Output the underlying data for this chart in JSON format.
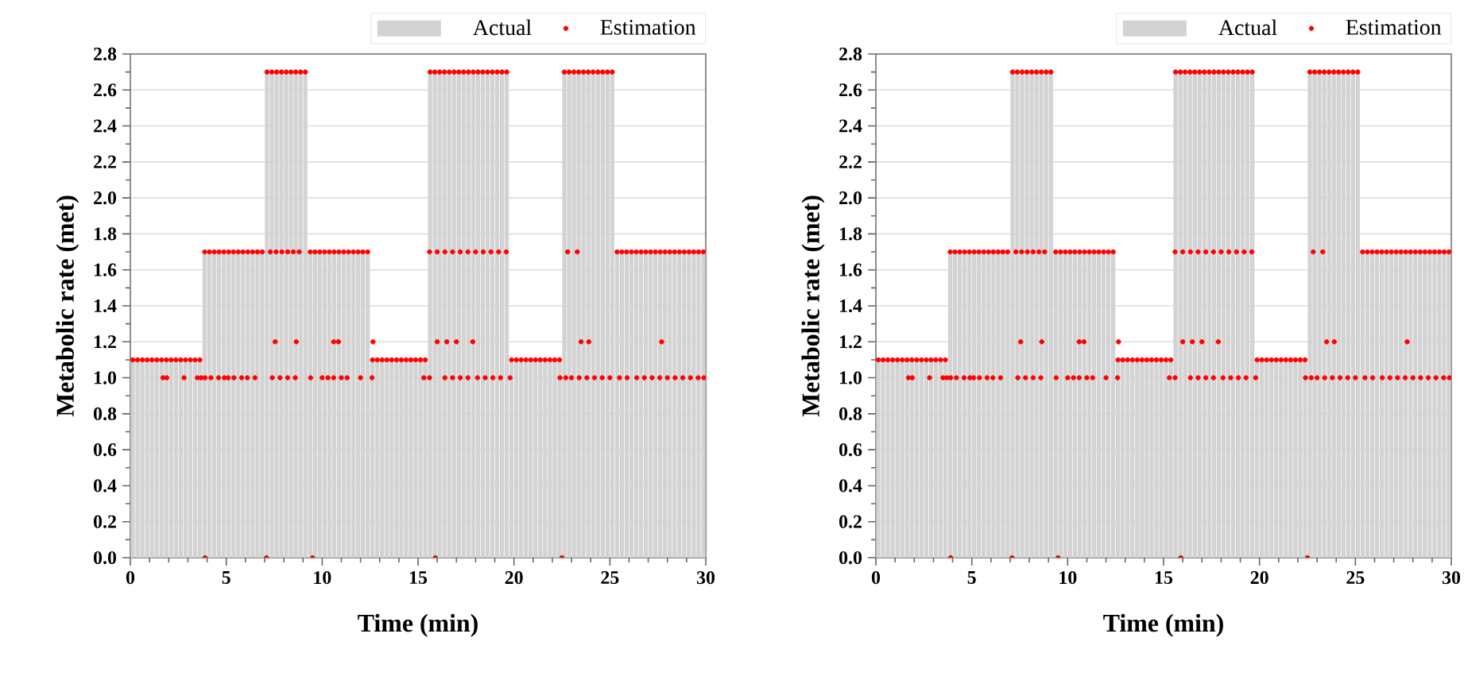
{
  "chart_data": [
    {
      "type": "bar",
      "xlabel": "Time (min)",
      "ylabel": "Metabolic rate (met)",
      "xlim": [
        0,
        30
      ],
      "ylim": [
        0,
        2.8
      ],
      "xticks": [
        0,
        5,
        10,
        15,
        20,
        25,
        30
      ],
      "yticks": [
        {
          "value": 0,
          "label": "0.0"
        },
        {
          "value": 0.2,
          "label": "0.2"
        },
        {
          "value": 0.4,
          "label": "0.4"
        },
        {
          "value": 0.6,
          "label": "0.6"
        },
        {
          "value": 0.8,
          "label": "0.8"
        },
        {
          "value": 1.0,
          "label": "1.0"
        },
        {
          "value": 1.2,
          "label": "1.2"
        },
        {
          "value": 1.4,
          "label": "1.4"
        },
        {
          "value": 1.6,
          "label": "1.6"
        },
        {
          "value": 1.8,
          "label": "1.8"
        },
        {
          "value": 2.0,
          "label": "2.0"
        },
        {
          "value": 2.2,
          "label": "2.2"
        },
        {
          "value": 2.4,
          "label": "2.4"
        },
        {
          "value": 2.6,
          "label": "2.6"
        },
        {
          "value": 2.8,
          "label": "2.8"
        }
      ],
      "grid": "y",
      "legend": "top right",
      "series": [
        {
          "name": "Actual",
          "color": "#d3d3d3",
          "x": [
            0.125,
            0.375,
            0.625,
            0.875,
            1.125,
            1.375,
            1.625,
            1.875,
            2.125,
            2.375,
            2.625,
            2.875,
            3.125,
            3.375,
            3.625,
            3.875,
            4.125,
            4.375,
            4.625,
            4.875,
            5.125,
            5.375,
            5.625,
            5.875,
            6.125,
            6.375,
            6.625,
            6.875,
            7.125,
            7.375,
            7.625,
            7.875,
            8.125,
            8.375,
            8.625,
            8.875,
            9.125,
            9.375,
            9.625,
            9.875,
            10.125,
            10.375,
            10.625,
            10.875,
            11.125,
            11.375,
            11.625,
            11.875,
            12.125,
            12.375,
            12.625,
            12.875,
            13.125,
            13.375,
            13.625,
            13.875,
            14.125,
            14.375,
            14.625,
            14.875,
            15.125,
            15.375,
            15.625,
            15.875,
            16.125,
            16.375,
            16.625,
            16.875,
            17.125,
            17.375,
            17.625,
            17.875,
            18.125,
            18.375,
            18.625,
            18.875,
            19.125,
            19.375,
            19.625,
            19.875,
            20.125,
            20.375,
            20.625,
            20.875,
            21.125,
            21.375,
            21.625,
            21.875,
            22.125,
            22.375,
            22.625,
            22.875,
            23.125,
            23.375,
            23.625,
            23.875,
            24.125,
            24.375,
            24.625,
            24.875,
            25.125,
            25.375,
            25.625,
            25.875,
            26.125,
            26.375,
            26.625,
            26.875,
            27.125,
            27.375,
            27.625,
            27.875,
            28.125,
            28.375,
            28.625,
            28.875,
            29.125,
            29.375,
            29.625,
            29.875
          ],
          "values": [
            1.1,
            1.1,
            1.1,
            1.1,
            1.1,
            1.1,
            1.1,
            1.1,
            1.1,
            1.1,
            1.1,
            1.1,
            1.1,
            1.1,
            1.1,
            1.7,
            1.7,
            1.7,
            1.7,
            1.7,
            1.7,
            1.7,
            1.7,
            1.7,
            1.7,
            1.7,
            1.7,
            1.7,
            2.7,
            2.7,
            2.7,
            2.7,
            2.7,
            2.7,
            2.7,
            2.7,
            2.7,
            1.7,
            1.7,
            1.7,
            1.7,
            1.7,
            1.7,
            1.7,
            1.7,
            1.7,
            1.7,
            1.7,
            1.7,
            1.7,
            1.1,
            1.1,
            1.1,
            1.1,
            1.1,
            1.1,
            1.1,
            1.1,
            1.1,
            1.1,
            1.1,
            1.1,
            2.7,
            2.7,
            2.7,
            2.7,
            2.7,
            2.7,
            2.7,
            2.7,
            2.7,
            2.7,
            2.7,
            2.7,
            2.7,
            2.7,
            2.7,
            2.7,
            2.7,
            1.1,
            1.1,
            1.1,
            1.1,
            1.1,
            1.1,
            1.1,
            1.1,
            1.1,
            1.1,
            1.1,
            2.7,
            2.7,
            2.7,
            2.7,
            2.7,
            2.7,
            2.7,
            2.7,
            2.7,
            2.7,
            2.7,
            1.7,
            1.7,
            1.7,
            1.7,
            1.7,
            1.7,
            1.7,
            1.7,
            1.7,
            1.7,
            1.7,
            1.7,
            1.7,
            1.7,
            1.7,
            1.7,
            1.7,
            1.7,
            1.7
          ]
        },
        {
          "name": "Estimation",
          "type": "scatter",
          "color": "#ff0000",
          "marker": "circle",
          "x": [
            0.125,
            0.375,
            0.625,
            0.875,
            1.125,
            1.375,
            1.625,
            1.875,
            2.125,
            2.375,
            2.625,
            2.875,
            3.125,
            3.375,
            3.625,
            3.875,
            4.125,
            4.375,
            4.625,
            4.875,
            5.125,
            5.375,
            5.625,
            5.875,
            6.125,
            6.375,
            6.625,
            6.875,
            7.125,
            7.375,
            7.625,
            7.875,
            8.125,
            8.375,
            8.625,
            8.875,
            9.125,
            9.375,
            9.625,
            9.875,
            10.125,
            10.375,
            10.625,
            10.875,
            11.125,
            11.375,
            11.625,
            11.875,
            12.125,
            12.375,
            12.625,
            12.875,
            13.125,
            13.375,
            13.625,
            13.875,
            14.125,
            14.375,
            14.625,
            14.875,
            15.125,
            15.375,
            15.625,
            15.875,
            16.125,
            16.375,
            16.625,
            16.875,
            17.125,
            17.375,
            17.625,
            17.875,
            18.125,
            18.375,
            18.625,
            18.875,
            19.125,
            19.375,
            19.625,
            19.875,
            20.125,
            20.375,
            20.625,
            20.875,
            21.125,
            21.375,
            21.625,
            21.875,
            22.125,
            22.375,
            22.625,
            22.875,
            23.125,
            23.375,
            23.625,
            23.875,
            24.125,
            24.375,
            24.625,
            24.875,
            25.125,
            25.375,
            25.625,
            25.875,
            26.125,
            26.375,
            26.625,
            26.875,
            27.125,
            27.375,
            27.625,
            27.875,
            28.125,
            28.375,
            28.625,
            28.875,
            29.125,
            29.375,
            29.625,
            29.875,
            1.7,
            1.9,
            2.8,
            3.5,
            3.7,
            3.9,
            4.2,
            4.6,
            4.9,
            5.1,
            5.4,
            5.8,
            6.1,
            6.5,
            7.4,
            7.8,
            8.2,
            8.6,
            9.4,
            10.0,
            10.3,
            10.6,
            11.0,
            11.3,
            12.0,
            12.6,
            15.3,
            15.6,
            16.4,
            16.8,
            17.2,
            17.6,
            18.1,
            18.5,
            18.9,
            19.3,
            19.8,
            22.4,
            22.7,
            23.0,
            23.4,
            23.8,
            24.2,
            24.6,
            25.0,
            25.5,
            25.9,
            26.4,
            26.8,
            27.2,
            27.6,
            28.0,
            28.4,
            28.8,
            29.2,
            29.6,
            29.9,
            7.55,
            8.65,
            10.6,
            10.85,
            12.65,
            16.0,
            16.5,
            17.0,
            17.85,
            23.5,
            23.9,
            27.7,
            7.3,
            7.6,
            7.9,
            8.2,
            8.5,
            8.8,
            15.6,
            16.0,
            16.4,
            16.8,
            17.2,
            17.6,
            18.0,
            18.4,
            18.8,
            19.2,
            19.6,
            22.8,
            23.3,
            3.9,
            7.1,
            9.5,
            15.9,
            22.5
          ],
          "values": [
            1.1,
            1.1,
            1.1,
            1.1,
            1.1,
            1.1,
            1.1,
            1.1,
            1.1,
            1.1,
            1.1,
            1.1,
            1.1,
            1.1,
            1.1,
            1.7,
            1.7,
            1.7,
            1.7,
            1.7,
            1.7,
            1.7,
            1.7,
            1.7,
            1.7,
            1.7,
            1.7,
            1.7,
            2.7,
            2.7,
            2.7,
            2.7,
            2.7,
            2.7,
            2.7,
            2.7,
            2.7,
            1.7,
            1.7,
            1.7,
            1.7,
            1.7,
            1.7,
            1.7,
            1.7,
            1.7,
            1.7,
            1.7,
            1.7,
            1.7,
            1.1,
            1.1,
            1.1,
            1.1,
            1.1,
            1.1,
            1.1,
            1.1,
            1.1,
            1.1,
            1.1,
            1.1,
            2.7,
            2.7,
            2.7,
            2.7,
            2.7,
            2.7,
            2.7,
            2.7,
            2.7,
            2.7,
            2.7,
            2.7,
            2.7,
            2.7,
            2.7,
            2.7,
            2.7,
            1.1,
            1.1,
            1.1,
            1.1,
            1.1,
            1.1,
            1.1,
            1.1,
            1.1,
            1.1,
            1.1,
            2.7,
            2.7,
            2.7,
            2.7,
            2.7,
            2.7,
            2.7,
            2.7,
            2.7,
            2.7,
            2.7,
            1.7,
            1.7,
            1.7,
            1.7,
            1.7,
            1.7,
            1.7,
            1.7,
            1.7,
            1.7,
            1.7,
            1.7,
            1.7,
            1.7,
            1.7,
            1.7,
            1.7,
            1.7,
            1.7,
            1.0,
            1.0,
            1.0,
            1.0,
            1.0,
            1.0,
            1.0,
            1.0,
            1.0,
            1.0,
            1.0,
            1.0,
            1.0,
            1.0,
            1.0,
            1.0,
            1.0,
            1.0,
            1.0,
            1.0,
            1.0,
            1.0,
            1.0,
            1.0,
            1.0,
            1.0,
            1.0,
            1.0,
            1.0,
            1.0,
            1.0,
            1.0,
            1.0,
            1.0,
            1.0,
            1.0,
            1.0,
            1.0,
            1.0,
            1.0,
            1.0,
            1.0,
            1.0,
            1.0,
            1.0,
            1.0,
            1.0,
            1.0,
            1.0,
            1.0,
            1.0,
            1.0,
            1.0,
            1.0,
            1.0,
            1.0,
            1.0,
            1.2,
            1.2,
            1.2,
            1.2,
            1.2,
            1.2,
            1.2,
            1.2,
            1.2,
            1.2,
            1.2,
            1.2,
            1.7,
            1.7,
            1.7,
            1.7,
            1.7,
            1.7,
            1.7,
            1.7,
            1.7,
            1.7,
            1.7,
            1.7,
            1.7,
            1.7,
            1.7,
            1.7,
            1.7,
            1.7,
            1.7,
            0,
            0,
            0,
            0,
            0
          ]
        }
      ]
    },
    {
      "type": "bar",
      "xlabel": "Time (min)",
      "ylabel": "Metabolic rate (met)",
      "xlim": [
        0,
        30
      ],
      "ylim": [
        0,
        2.8
      ],
      "xticks": [
        0,
        5,
        10,
        15,
        20,
        25,
        30
      ],
      "yticks": [
        {
          "value": 0,
          "label": "0.0"
        },
        {
          "value": 0.2,
          "label": "0.2"
        },
        {
          "value": 0.4,
          "label": "0.4"
        },
        {
          "value": 0.6,
          "label": "0.6"
        },
        {
          "value": 0.8,
          "label": "0.8"
        },
        {
          "value": 1.0,
          "label": "1.0"
        },
        {
          "value": 1.2,
          "label": "1.2"
        },
        {
          "value": 1.4,
          "label": "1.4"
        },
        {
          "value": 1.6,
          "label": "1.6"
        },
        {
          "value": 1.8,
          "label": "1.8"
        },
        {
          "value": 2.0,
          "label": "2.0"
        },
        {
          "value": 2.2,
          "label": "2.2"
        },
        {
          "value": 2.4,
          "label": "2.4"
        },
        {
          "value": 2.6,
          "label": "2.6"
        },
        {
          "value": 2.8,
          "label": "2.8"
        }
      ],
      "grid": "y",
      "legend": "top right",
      "series": [
        {
          "name": "Actual",
          "color": "#d3d3d3",
          "x": [
            0.125,
            0.375,
            0.625,
            0.875,
            1.125,
            1.375,
            1.625,
            1.875,
            2.125,
            2.375,
            2.625,
            2.875,
            3.125,
            3.375,
            3.625,
            3.875,
            4.125,
            4.375,
            4.625,
            4.875,
            5.125,
            5.375,
            5.625,
            5.875,
            6.125,
            6.375,
            6.625,
            6.875,
            7.125,
            7.375,
            7.625,
            7.875,
            8.125,
            8.375,
            8.625,
            8.875,
            9.125,
            9.375,
            9.625,
            9.875,
            10.125,
            10.375,
            10.625,
            10.875,
            11.125,
            11.375,
            11.625,
            11.875,
            12.125,
            12.375,
            12.625,
            12.875,
            13.125,
            13.375,
            13.625,
            13.875,
            14.125,
            14.375,
            14.625,
            14.875,
            15.125,
            15.375,
            15.625,
            15.875,
            16.125,
            16.375,
            16.625,
            16.875,
            17.125,
            17.375,
            17.625,
            17.875,
            18.125,
            18.375,
            18.625,
            18.875,
            19.125,
            19.375,
            19.625,
            19.875,
            20.125,
            20.375,
            20.625,
            20.875,
            21.125,
            21.375,
            21.625,
            21.875,
            22.125,
            22.375,
            22.625,
            22.875,
            23.125,
            23.375,
            23.625,
            23.875,
            24.125,
            24.375,
            24.625,
            24.875,
            25.125,
            25.375,
            25.625,
            25.875,
            26.125,
            26.375,
            26.625,
            26.875,
            27.125,
            27.375,
            27.625,
            27.875,
            28.125,
            28.375,
            28.625,
            28.875,
            29.125,
            29.375,
            29.625,
            29.875
          ],
          "values": [
            1.1,
            1.1,
            1.1,
            1.1,
            1.1,
            1.1,
            1.1,
            1.1,
            1.1,
            1.1,
            1.1,
            1.1,
            1.1,
            1.1,
            1.1,
            1.7,
            1.7,
            1.7,
            1.7,
            1.7,
            1.7,
            1.7,
            1.7,
            1.7,
            1.7,
            1.7,
            1.7,
            1.7,
            2.7,
            2.7,
            2.7,
            2.7,
            2.7,
            2.7,
            2.7,
            2.7,
            2.7,
            1.7,
            1.7,
            1.7,
            1.7,
            1.7,
            1.7,
            1.7,
            1.7,
            1.7,
            1.7,
            1.7,
            1.7,
            1.7,
            1.1,
            1.1,
            1.1,
            1.1,
            1.1,
            1.1,
            1.1,
            1.1,
            1.1,
            1.1,
            1.1,
            1.1,
            2.7,
            2.7,
            2.7,
            2.7,
            2.7,
            2.7,
            2.7,
            2.7,
            2.7,
            2.7,
            2.7,
            2.7,
            2.7,
            2.7,
            2.7,
            2.7,
            2.7,
            1.1,
            1.1,
            1.1,
            1.1,
            1.1,
            1.1,
            1.1,
            1.1,
            1.1,
            1.1,
            1.1,
            2.7,
            2.7,
            2.7,
            2.7,
            2.7,
            2.7,
            2.7,
            2.7,
            2.7,
            2.7,
            2.7,
            1.7,
            1.7,
            1.7,
            1.7,
            1.7,
            1.7,
            1.7,
            1.7,
            1.7,
            1.7,
            1.7,
            1.7,
            1.7,
            1.7,
            1.7,
            1.7,
            1.7,
            1.7,
            1.7
          ]
        },
        {
          "name": "Estimation",
          "type": "scatter",
          "color": "#ff0000",
          "marker": "circle",
          "x": [
            0.125,
            0.375,
            0.625,
            0.875,
            1.125,
            1.375,
            1.625,
            1.875,
            2.125,
            2.375,
            2.625,
            2.875,
            3.125,
            3.375,
            3.625,
            3.875,
            4.125,
            4.375,
            4.625,
            4.875,
            5.125,
            5.375,
            5.625,
            5.875,
            6.125,
            6.375,
            6.625,
            6.875,
            7.125,
            7.375,
            7.625,
            7.875,
            8.125,
            8.375,
            8.625,
            8.875,
            9.125,
            9.375,
            9.625,
            9.875,
            10.125,
            10.375,
            10.625,
            10.875,
            11.125,
            11.375,
            11.625,
            11.875,
            12.125,
            12.375,
            12.625,
            12.875,
            13.125,
            13.375,
            13.625,
            13.875,
            14.125,
            14.375,
            14.625,
            14.875,
            15.125,
            15.375,
            15.625,
            15.875,
            16.125,
            16.375,
            16.625,
            16.875,
            17.125,
            17.375,
            17.625,
            17.875,
            18.125,
            18.375,
            18.625,
            18.875,
            19.125,
            19.375,
            19.625,
            19.875,
            20.125,
            20.375,
            20.625,
            20.875,
            21.125,
            21.375,
            21.625,
            21.875,
            22.125,
            22.375,
            22.625,
            22.875,
            23.125,
            23.375,
            23.625,
            23.875,
            24.125,
            24.375,
            24.625,
            24.875,
            25.125,
            25.375,
            25.625,
            25.875,
            26.125,
            26.375,
            26.625,
            26.875,
            27.125,
            27.375,
            27.625,
            27.875,
            28.125,
            28.375,
            28.625,
            28.875,
            29.125,
            29.375,
            29.625,
            29.875,
            1.7,
            1.9,
            2.8,
            3.5,
            3.7,
            3.9,
            4.2,
            4.6,
            4.9,
            5.1,
            5.4,
            5.8,
            6.1,
            6.5,
            7.4,
            7.8,
            8.2,
            8.6,
            9.4,
            10.0,
            10.3,
            10.6,
            11.0,
            11.3,
            12.0,
            12.6,
            15.3,
            15.6,
            16.4,
            16.8,
            17.2,
            17.6,
            18.1,
            18.5,
            18.9,
            19.3,
            19.8,
            22.4,
            22.7,
            23.0,
            23.4,
            23.8,
            24.2,
            24.6,
            25.0,
            25.5,
            25.9,
            26.4,
            26.8,
            27.2,
            27.6,
            28.0,
            28.4,
            28.8,
            29.2,
            29.6,
            29.9,
            7.55,
            8.65,
            10.6,
            10.85,
            12.65,
            16.0,
            16.5,
            17.0,
            17.85,
            23.5,
            23.9,
            27.7,
            7.3,
            7.6,
            7.9,
            8.2,
            8.5,
            8.8,
            15.6,
            16.0,
            16.4,
            16.8,
            17.2,
            17.6,
            18.0,
            18.4,
            18.8,
            19.2,
            19.6,
            22.8,
            23.3,
            3.9,
            7.1,
            9.5,
            15.9,
            22.5
          ],
          "values": [
            1.1,
            1.1,
            1.1,
            1.1,
            1.1,
            1.1,
            1.1,
            1.1,
            1.1,
            1.1,
            1.1,
            1.1,
            1.1,
            1.1,
            1.1,
            1.7,
            1.7,
            1.7,
            1.7,
            1.7,
            1.7,
            1.7,
            1.7,
            1.7,
            1.7,
            1.7,
            1.7,
            1.7,
            2.7,
            2.7,
            2.7,
            2.7,
            2.7,
            2.7,
            2.7,
            2.7,
            2.7,
            1.7,
            1.7,
            1.7,
            1.7,
            1.7,
            1.7,
            1.7,
            1.7,
            1.7,
            1.7,
            1.7,
            1.7,
            1.7,
            1.1,
            1.1,
            1.1,
            1.1,
            1.1,
            1.1,
            1.1,
            1.1,
            1.1,
            1.1,
            1.1,
            1.1,
            2.7,
            2.7,
            2.7,
            2.7,
            2.7,
            2.7,
            2.7,
            2.7,
            2.7,
            2.7,
            2.7,
            2.7,
            2.7,
            2.7,
            2.7,
            2.7,
            2.7,
            1.1,
            1.1,
            1.1,
            1.1,
            1.1,
            1.1,
            1.1,
            1.1,
            1.1,
            1.1,
            1.1,
            2.7,
            2.7,
            2.7,
            2.7,
            2.7,
            2.7,
            2.7,
            2.7,
            2.7,
            2.7,
            2.7,
            1.7,
            1.7,
            1.7,
            1.7,
            1.7,
            1.7,
            1.7,
            1.7,
            1.7,
            1.7,
            1.7,
            1.7,
            1.7,
            1.7,
            1.7,
            1.7,
            1.7,
            1.7,
            1.7,
            1.0,
            1.0,
            1.0,
            1.0,
            1.0,
            1.0,
            1.0,
            1.0,
            1.0,
            1.0,
            1.0,
            1.0,
            1.0,
            1.0,
            1.0,
            1.0,
            1.0,
            1.0,
            1.0,
            1.0,
            1.0,
            1.0,
            1.0,
            1.0,
            1.0,
            1.0,
            1.0,
            1.0,
            1.0,
            1.0,
            1.0,
            1.0,
            1.0,
            1.0,
            1.0,
            1.0,
            1.0,
            1.0,
            1.0,
            1.0,
            1.0,
            1.0,
            1.0,
            1.0,
            1.0,
            1.0,
            1.0,
            1.0,
            1.0,
            1.0,
            1.0,
            1.0,
            1.0,
            1.0,
            1.0,
            1.0,
            1.0,
            1.2,
            1.2,
            1.2,
            1.2,
            1.2,
            1.2,
            1.2,
            1.2,
            1.2,
            1.2,
            1.2,
            1.2,
            1.7,
            1.7,
            1.7,
            1.7,
            1.7,
            1.7,
            1.7,
            1.7,
            1.7,
            1.7,
            1.7,
            1.7,
            1.7,
            1.7,
            1.7,
            1.7,
            1.7,
            1.7,
            1.7,
            0,
            0,
            0,
            0,
            0
          ]
        }
      ]
    }
  ]
}
